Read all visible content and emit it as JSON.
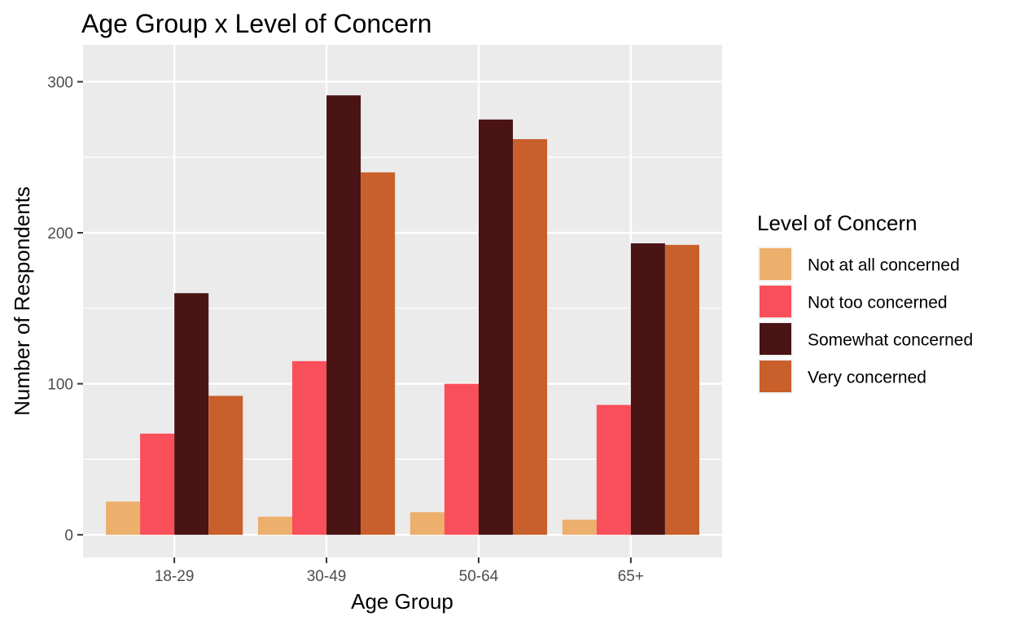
{
  "chart_data": {
    "type": "bar",
    "title": "Age Group x Level of Concern",
    "xlabel": "Age Group",
    "ylabel": "Number of Respondents",
    "categories": [
      "18-29",
      "30-49",
      "50-64",
      "65+"
    ],
    "ylim": [
      -15,
      300
    ],
    "yticks": [
      0,
      100,
      200,
      300
    ],
    "grid": true,
    "legend": {
      "title": "Level of Concern",
      "position": "right"
    },
    "series": [
      {
        "name": "Not at all concerned",
        "color": "#EDAF6C",
        "values": [
          22,
          12,
          15,
          10
        ]
      },
      {
        "name": "Not too concerned",
        "color": "#F94F5A",
        "values": [
          67,
          115,
          100,
          86
        ]
      },
      {
        "name": "Somewhat concerned",
        "color": "#4A1314",
        "values": [
          160,
          291,
          275,
          193
        ]
      },
      {
        "name": "Very concerned",
        "color": "#C95F2B",
        "values": [
          92,
          240,
          262,
          192
        ]
      }
    ]
  }
}
